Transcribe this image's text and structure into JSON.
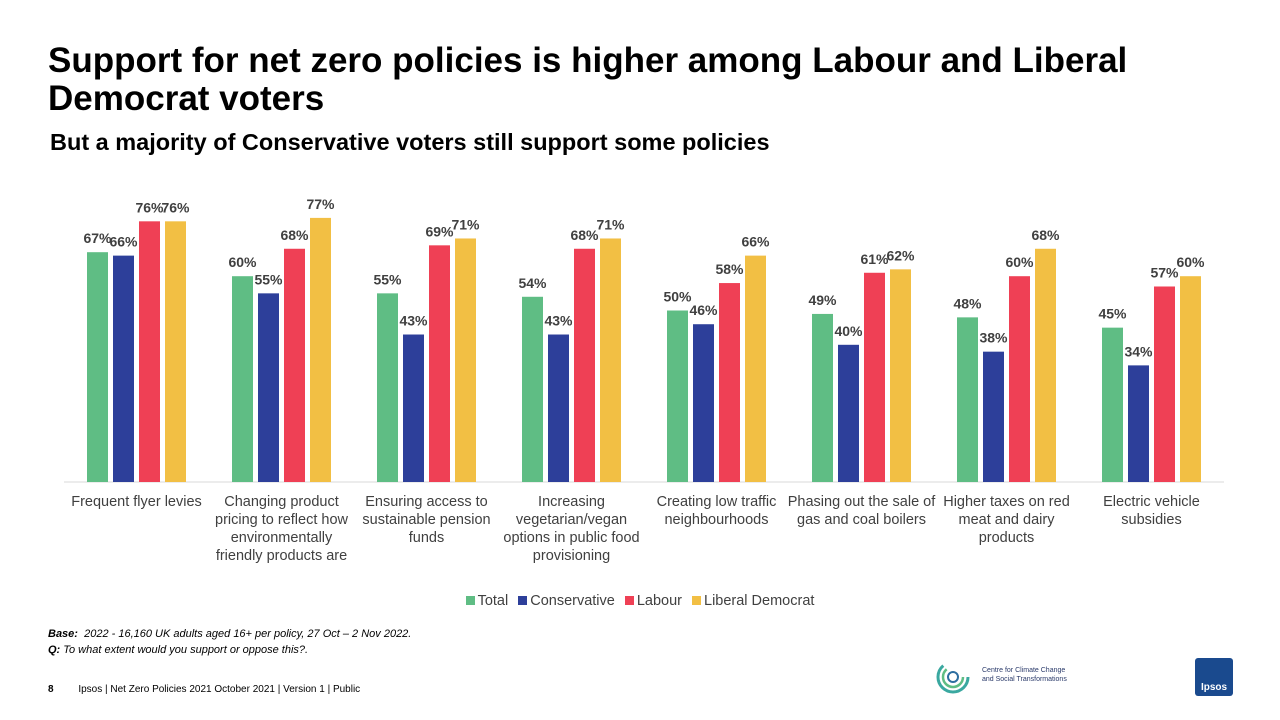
{
  "slide": {
    "title": "Support for net zero policies is higher among Labour and Liberal Democrat voters",
    "subtitle": "But a majority of Conservative voters still support some policies",
    "base_label": "Base:",
    "base_text": "2022 - 16,160 UK adults aged 16+ per policy, 27 Oct – 2 Nov 2022.",
    "q_label": "Q:",
    "q_text": "To what extent would you support or oppose this?.",
    "page_number": "8",
    "footer_text": "Ipsos | Net Zero Policies 2021  October 2021 | Version 1 | Public",
    "ccst_logo_text": "Centre for Climate Change and Social Transformations",
    "ipsos_logo_text": "Ipsos"
  },
  "colors": {
    "Total": "#5fbd84",
    "Conservative": "#2d3f9a",
    "Labour": "#ef4055",
    "Liberal Democrat": "#f2bf44"
  },
  "chart_data": {
    "type": "bar",
    "title": "",
    "categories": [
      "Frequent flyer levies",
      "Changing product pricing to reflect how environmentally friendly products are",
      "Ensuring access to sustainable pension funds",
      "Increasing vegetarian/vegan options in public food provisioning",
      "Creating low traffic neighbourhoods",
      "Phasing out the sale of gas and coal boilers",
      "Higher taxes on red meat and dairy products",
      "Electric vehicle subsidies"
    ],
    "series": [
      {
        "name": "Total",
        "values": [
          67,
          60,
          55,
          54,
          50,
          49,
          48,
          45
        ]
      },
      {
        "name": "Conservative",
        "values": [
          66,
          55,
          43,
          43,
          46,
          40,
          38,
          34
        ]
      },
      {
        "name": "Labour",
        "values": [
          76,
          68,
          69,
          68,
          58,
          61,
          60,
          57
        ]
      },
      {
        "name": "Liberal Democrat",
        "values": [
          76,
          77,
          71,
          71,
          66,
          62,
          68,
          60
        ]
      }
    ],
    "value_suffix": "%",
    "ylim": [
      0,
      100
    ],
    "grid": false,
    "legend_position": "bottom"
  }
}
